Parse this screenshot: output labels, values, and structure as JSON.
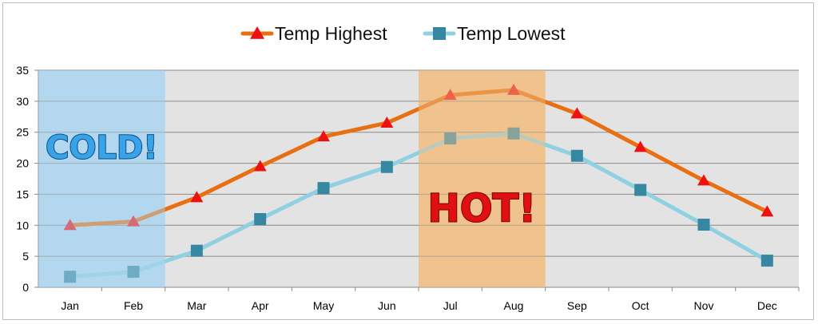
{
  "chart_data": {
    "type": "line",
    "categories": [
      "Jan",
      "Feb",
      "Mar",
      "Apr",
      "May",
      "Jun",
      "Jul",
      "Aug",
      "Sep",
      "Oct",
      "Nov",
      "Dec"
    ],
    "series": [
      {
        "name": "Temp Highest",
        "values": [
          10,
          10.6,
          14.5,
          19.5,
          24.3,
          26.5,
          31,
          31.8,
          28,
          22.6,
          17.2,
          12.2
        ],
        "color": "#e86f12",
        "marker": "triangle",
        "marker_color": "#ee1111"
      },
      {
        "name": "Temp Lowest",
        "values": [
          1.7,
          2.5,
          5.9,
          11,
          16,
          19.4,
          24,
          24.8,
          21.2,
          15.7,
          10.1,
          4.3
        ],
        "color": "#8fd0e3",
        "marker": "square",
        "marker_color": "#3688a2"
      }
    ],
    "ylim": [
      0,
      35
    ],
    "yticks": [
      0,
      5,
      10,
      15,
      20,
      25,
      30,
      35
    ],
    "grid": true,
    "legend_position": "top-center",
    "annotations": [
      {
        "text": "COLD!",
        "region": [
          "Jan",
          "Feb"
        ],
        "color": "#b3d8ee"
      },
      {
        "text": "HOT!",
        "region": [
          "Jul",
          "Aug"
        ],
        "color": "#f0c38f"
      }
    ],
    "plot_background": "#e3e3e3"
  }
}
